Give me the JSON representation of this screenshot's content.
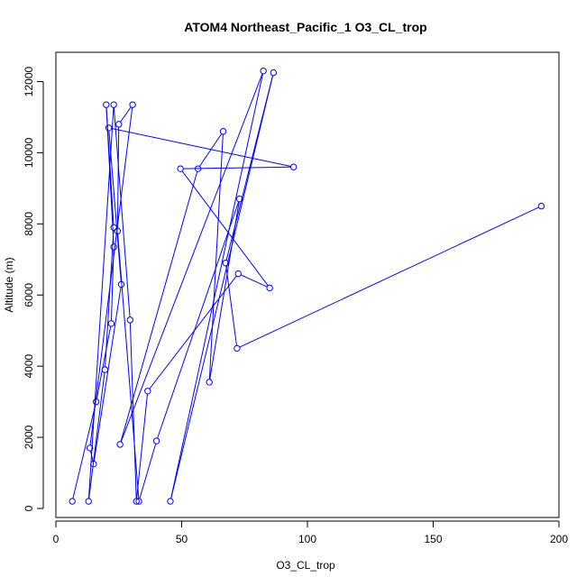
{
  "chart_data": {
    "type": "line",
    "title": "ATOM4 Northeast_Pacific_1 O3_CL_trop",
    "xlabel": "O3_CL_trop",
    "ylabel": "Altitude (m)",
    "xlim": [
      0,
      200
    ],
    "ylim": [
      0,
      12000
    ],
    "xticks": [
      0,
      50,
      100,
      150,
      200
    ],
    "yticks": [
      0,
      2000,
      4000,
      6000,
      8000,
      10000,
      12000
    ],
    "series": [
      {
        "color": "#0000ff",
        "marker": "open-circle",
        "points": [
          [
            6.5,
            200
          ],
          [
            16,
            3000
          ],
          [
            22,
            5200
          ],
          [
            23,
            7350
          ],
          [
            20,
            11350
          ],
          [
            23,
            7900
          ],
          [
            19.5,
            3900
          ],
          [
            13,
            200
          ],
          [
            23,
            11350
          ],
          [
            29.5,
            5300
          ],
          [
            32,
            200
          ],
          [
            36.5,
            3300
          ],
          [
            72.5,
            6600
          ],
          [
            85,
            6200
          ],
          [
            49.5,
            9550
          ],
          [
            94.5,
            9600
          ],
          [
            21,
            10700
          ],
          [
            26,
            6300
          ],
          [
            15,
            1250
          ],
          [
            13.5,
            1700
          ],
          [
            30.5,
            11350
          ],
          [
            25,
            10800
          ],
          [
            24.5,
            7800
          ],
          [
            33,
            200
          ],
          [
            40,
            1900
          ],
          [
            73,
            8700
          ],
          [
            61,
            3550
          ],
          [
            66.5,
            10600
          ],
          [
            56.5,
            9550
          ],
          [
            25.5,
            1800
          ],
          [
            82.5,
            12300
          ],
          [
            45.5,
            200
          ],
          [
            86.5,
            12250
          ],
          [
            67.5,
            6900
          ],
          [
            72,
            4500
          ],
          [
            193,
            8500
          ]
        ]
      }
    ]
  }
}
